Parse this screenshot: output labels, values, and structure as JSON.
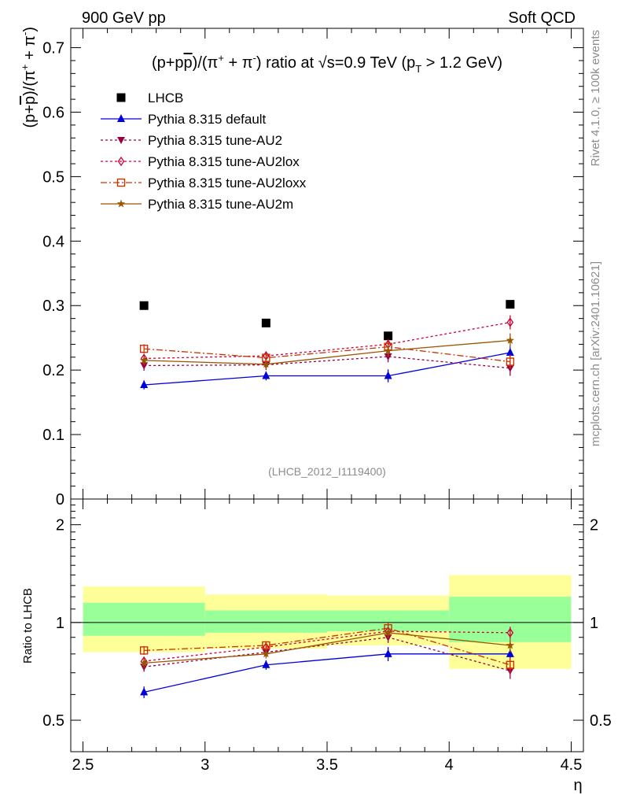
{
  "header": {
    "left": "900 GeV pp",
    "right": "Soft QCD"
  },
  "side_labels": {
    "rivet": "Rivet 4.1.0, ≥ 100k events",
    "site": "mcplots.cern.ch [arXiv:2401.10621]"
  },
  "analysis_id": "(LHCB_2012_I1119400)",
  "colors": {
    "lhcb": "#000000",
    "default": "#0000dd",
    "au2": "#990044",
    "au2lox": "#cc0033",
    "au2loxx": "#cc3300",
    "au2m": "#995500",
    "band_inner": "#99ff99",
    "band_outer": "#ffff99"
  },
  "chart_data": [
    {
      "type": "scatter",
      "title": "(p+p̄)/(π⁺ + π⁻) ratio at √s=0.9 TeV (pT > 1.2 GeV)",
      "title_parts": {
        "a": "(p+p",
        "pbar": "p",
        "b": ")/(π",
        "c": " + π",
        "d": ") ratio at ",
        "sqrt": "√s",
        "e": "=0.9 TeV (p",
        "sub": "T",
        "f": " > 1.2 GeV)",
        "plus": "+",
        "minus": "-"
      },
      "ylabel": "(p+p̄)/(π⁺ + π⁻)",
      "ylabel_parts": {
        "a": "(p+",
        "pbar": "p",
        "b": ")/(π",
        "plus": "+",
        "c": " + π",
        "minus": "-",
        "d": ")"
      },
      "xlim": [
        2.45,
        4.55
      ],
      "ylim": [
        0,
        0.73
      ],
      "yticks": [
        0,
        0.1,
        0.2,
        0.3,
        0.4,
        0.5,
        0.6,
        0.7
      ],
      "ytick_labels": [
        "0",
        "0.1",
        "0.2",
        "0.3",
        "0.4",
        "0.5",
        "0.6",
        "0.7"
      ],
      "x_bins": [
        2.75,
        3.25,
        3.75,
        4.25
      ],
      "series": [
        {
          "key": "lhcb",
          "name": "LHCB",
          "marker": "square",
          "line": "none",
          "values": [
            0.3,
            0.273,
            0.253,
            0.302
          ],
          "errors": [
            0.004,
            0.004,
            0.004,
            0.005
          ]
        },
        {
          "key": "default",
          "name": "Pythia 8.315 default",
          "marker": "triangle-up",
          "line": "solid",
          "values": [
            0.177,
            0.191,
            0.191,
            0.227
          ],
          "errors": [
            0.007,
            0.007,
            0.01,
            0.01
          ]
        },
        {
          "key": "au2",
          "name": "Pythia 8.315 tune-AU2",
          "marker": "triangle-down",
          "line": "dotted",
          "values": [
            0.207,
            0.208,
            0.221,
            0.203
          ],
          "errors": [
            0.008,
            0.008,
            0.009,
            0.012
          ]
        },
        {
          "key": "au2lox",
          "name": "Pythia 8.315 tune-AU2lox",
          "marker": "diamond-open",
          "line": "dotted",
          "values": [
            0.218,
            0.222,
            0.24,
            0.274
          ],
          "errors": [
            0.007,
            0.007,
            0.008,
            0.011
          ]
        },
        {
          "key": "au2loxx",
          "name": "Pythia 8.315 tune-AU2loxx",
          "marker": "square-open",
          "line": "dashdot",
          "values": [
            0.233,
            0.219,
            0.236,
            0.213
          ],
          "errors": [
            0.007,
            0.007,
            0.008,
            0.011
          ]
        },
        {
          "key": "au2m",
          "name": "Pythia 8.315 tune-AU2m",
          "marker": "star",
          "line": "solid",
          "values": [
            0.215,
            0.209,
            0.23,
            0.246
          ],
          "errors": [
            0.007,
            0.007,
            0.009,
            0.011
          ]
        }
      ]
    },
    {
      "type": "scatter",
      "title": "",
      "ylabel": "Ratio to LHCB",
      "xlabel": "η",
      "xlim": [
        2.45,
        4.55
      ],
      "ylim": [
        0.4,
        2.4
      ],
      "yscale": "log",
      "yticks": [
        0.5,
        1,
        2
      ],
      "ytick_labels": [
        "0.5",
        "1",
        "2"
      ],
      "xticks": [
        2.5,
        3,
        3.5,
        4,
        4.5
      ],
      "xtick_labels": [
        "2.5",
        "3",
        "3.5",
        "4",
        "4.5"
      ],
      "bands": [
        {
          "x0": 2.5,
          "x1": 3.0,
          "inner": [
            0.91,
            1.15
          ],
          "outer": [
            0.81,
            1.29
          ]
        },
        {
          "x0": 3.0,
          "x1": 3.5,
          "inner": [
            0.93,
            1.09
          ],
          "outer": [
            0.83,
            1.22
          ]
        },
        {
          "x0": 3.5,
          "x1": 4.0,
          "inner": [
            0.94,
            1.09
          ],
          "outer": [
            0.85,
            1.21
          ]
        },
        {
          "x0": 4.0,
          "x1": 4.5,
          "inner": [
            0.87,
            1.2
          ],
          "outer": [
            0.72,
            1.4
          ]
        }
      ],
      "x_bins": [
        2.75,
        3.25,
        3.75,
        4.25
      ],
      "series": [
        {
          "key": "default",
          "values": [
            0.61,
            0.74,
            0.8,
            0.8
          ],
          "errors": [
            0.025,
            0.025,
            0.04,
            0.035
          ]
        },
        {
          "key": "au2",
          "values": [
            0.73,
            0.81,
            0.9,
            0.71
          ],
          "errors": [
            0.025,
            0.025,
            0.035,
            0.04
          ]
        },
        {
          "key": "au2lox",
          "values": [
            0.76,
            0.84,
            0.94,
            0.93
          ],
          "errors": [
            0.025,
            0.025,
            0.035,
            0.04
          ]
        },
        {
          "key": "au2loxx",
          "values": [
            0.82,
            0.85,
            0.96,
            0.74
          ],
          "errors": [
            0.025,
            0.025,
            0.035,
            0.04
          ]
        },
        {
          "key": "au2m",
          "values": [
            0.75,
            0.8,
            0.93,
            0.85
          ],
          "errors": [
            0.025,
            0.025,
            0.035,
            0.04
          ]
        }
      ]
    }
  ]
}
